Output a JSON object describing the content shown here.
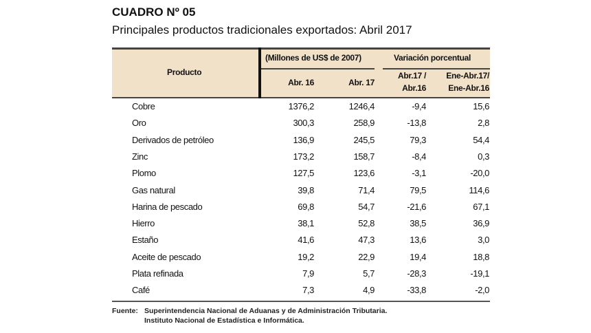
{
  "title": "CUADRO Nº 05",
  "subtitle": "Principales productos tradicionales exportados: Abril 2017",
  "table": {
    "header": {
      "producto": "Producto",
      "group1": "(Millones de US$ de 2007)",
      "group2": "Variación porcentual",
      "col1": "Abr. 16",
      "col2": "Abr. 17",
      "col3_line1": "Abr.17 /",
      "col3_line2": "Abr.16",
      "col4_line1": "Ene-Abr.17/",
      "col4_line2": "Ene-Abr.16"
    },
    "rows": [
      [
        "Cobre",
        "1376,2",
        "1246,4",
        "-9,4",
        "15,6"
      ],
      [
        "Oro",
        "300,3",
        "258,9",
        "-13,8",
        "2,8"
      ],
      [
        "Derivados de petróleo",
        "136,9",
        "245,5",
        "79,3",
        "54,4"
      ],
      [
        "Zinc",
        "173,2",
        "158,7",
        "-8,4",
        "0,3"
      ],
      [
        "Plomo",
        "127,5",
        "123,6",
        "-3,1",
        "-20,0"
      ],
      [
        "Gas natural",
        "39,8",
        "71,4",
        "79,5",
        "114,6"
      ],
      [
        "Harina de pescado",
        "69,8",
        "54,7",
        "-21,6",
        "67,1"
      ],
      [
        "Hierro",
        "38,1",
        "52,8",
        "38,5",
        "36,9"
      ],
      [
        "Estaño",
        "41,6",
        "47,3",
        "13,6",
        "3,0"
      ],
      [
        "Aceite de pescado",
        "19,2",
        "22,9",
        "19,4",
        "18,8"
      ],
      [
        "Plata refinada",
        "7,9",
        "5,7",
        "-28,3",
        "-19,1"
      ],
      [
        "Café",
        "7,3",
        "4,9",
        "-33,8",
        "-2,0"
      ]
    ]
  },
  "source": {
    "label": "Fuente:",
    "line1": "Superintendencia Nacional de Aduanas y de Administración Tributaria.",
    "line2": "Instituto Nacional de Estadística e Informática."
  },
  "colors": {
    "header_bg": "#f0e1c8"
  }
}
